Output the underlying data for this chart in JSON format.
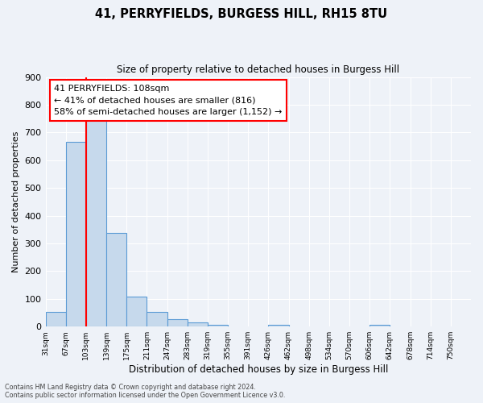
{
  "title": "41, PERRYFIELDS, BURGESS HILL, RH15 8TU",
  "subtitle": "Size of property relative to detached houses in Burgess Hill",
  "xlabel": "Distribution of detached houses by size in Burgess Hill",
  "ylabel": "Number of detached properties",
  "bin_labels": [
    "31sqm",
    "67sqm",
    "103sqm",
    "139sqm",
    "175sqm",
    "211sqm",
    "247sqm",
    "283sqm",
    "319sqm",
    "355sqm",
    "391sqm",
    "426sqm",
    "462sqm",
    "498sqm",
    "534sqm",
    "570sqm",
    "606sqm",
    "642sqm",
    "678sqm",
    "714sqm",
    "750sqm"
  ],
  "bar_values": [
    52,
    665,
    750,
    337,
    108,
    52,
    27,
    15,
    6,
    0,
    0,
    7,
    0,
    0,
    0,
    0,
    6,
    0,
    0,
    0,
    0
  ],
  "bar_color": "#c6d9ec",
  "bar_edge_color": "#5b9bd5",
  "vline_x": 2,
  "vline_color": "red",
  "ylim": [
    0,
    900
  ],
  "yticks": [
    0,
    100,
    200,
    300,
    400,
    500,
    600,
    700,
    800,
    900
  ],
  "annotation_text": "41 PERRYFIELDS: 108sqm\n← 41% of detached houses are smaller (816)\n58% of semi-detached houses are larger (1,152) →",
  "annotation_box_color": "white",
  "annotation_box_edge_color": "red",
  "footer_line1": "Contains HM Land Registry data © Crown copyright and database right 2024.",
  "footer_line2": "Contains public sector information licensed under the Open Government Licence v3.0.",
  "bg_color": "#eef2f8",
  "grid_color": "white"
}
